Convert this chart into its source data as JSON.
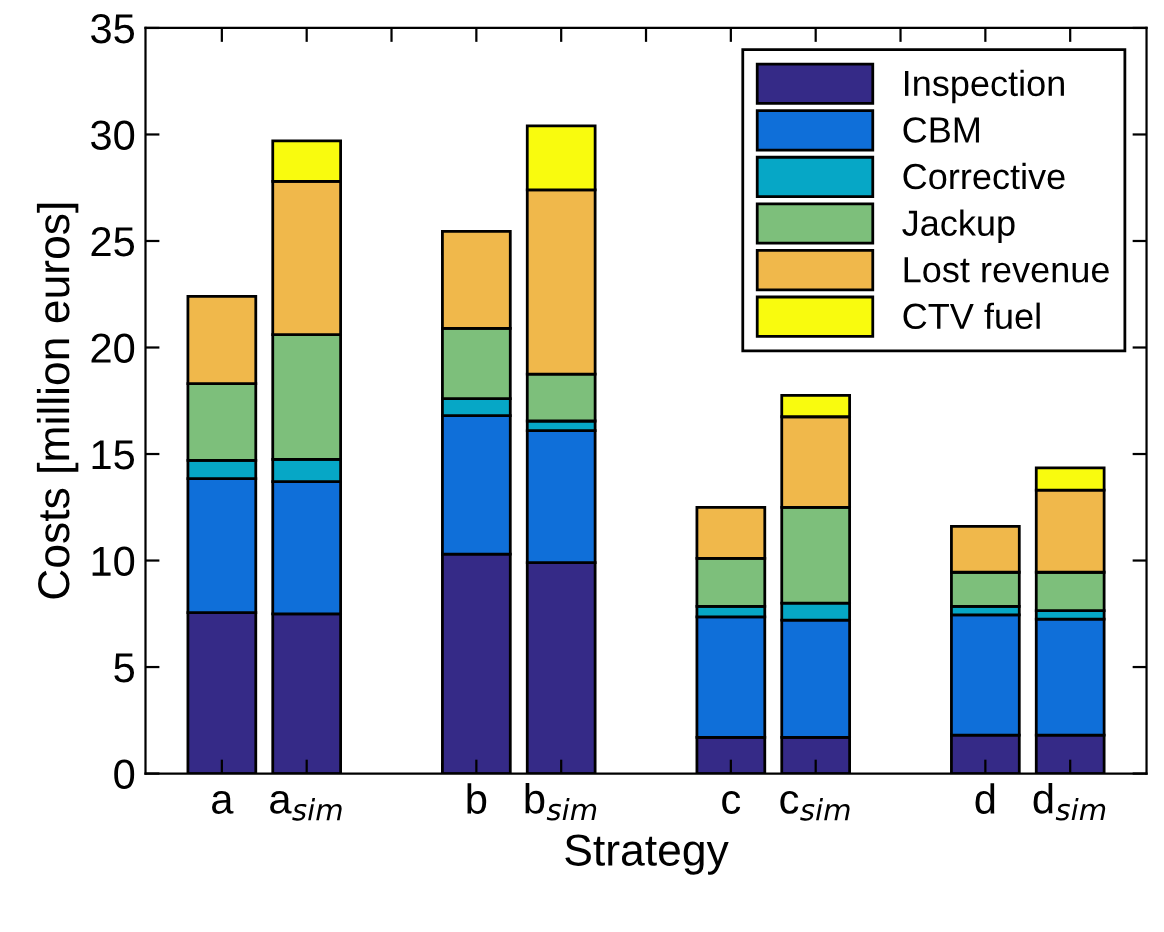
{
  "chart_data": {
    "type": "bar",
    "stacked": true,
    "xlabel": "Strategy",
    "ylabel": "Costs [million euros]",
    "categories": [
      "a",
      "a$_{sim}$",
      null,
      "b",
      "b$_{sim}$",
      null,
      "c",
      "c$_{sim}$",
      null,
      "d",
      "d$_{sim}$"
    ],
    "series": [
      {
        "name": "Inspection",
        "color": "#352a87",
        "values": [
          7.55,
          7.5,
          null,
          10.3,
          9.9,
          null,
          1.7,
          1.7,
          null,
          1.8,
          1.8
        ]
      },
      {
        "name": "CBM",
        "color": "#0f6fd9",
        "values": [
          6.3,
          6.2,
          null,
          6.5,
          6.2,
          null,
          5.65,
          5.5,
          null,
          5.65,
          5.45
        ]
      },
      {
        "name": "Corrective",
        "color": "#06a7c6",
        "values": [
          0.85,
          1.05,
          null,
          0.8,
          0.45,
          null,
          0.5,
          0.8,
          null,
          0.4,
          0.4
        ]
      },
      {
        "name": "Jackup",
        "color": "#7dbf7b",
        "values": [
          3.6,
          5.85,
          null,
          3.3,
          2.2,
          null,
          2.25,
          4.5,
          null,
          1.6,
          1.8
        ]
      },
      {
        "name": "Lost revenue",
        "color": "#f0b84b",
        "values": [
          4.1,
          7.2,
          null,
          4.55,
          8.65,
          null,
          2.4,
          4.25,
          null,
          2.15,
          3.85
        ]
      },
      {
        "name": "CTV fuel",
        "color": "#f9fb0e",
        "values": [
          null,
          1.9,
          null,
          null,
          3.0,
          null,
          null,
          1.0,
          null,
          null,
          1.05
        ]
      }
    ],
    "ylim": [
      0,
      35
    ],
    "yticks": [
      0,
      5,
      10,
      15,
      20,
      25,
      30,
      35
    ],
    "legend": "top right",
    "grid": false
  }
}
